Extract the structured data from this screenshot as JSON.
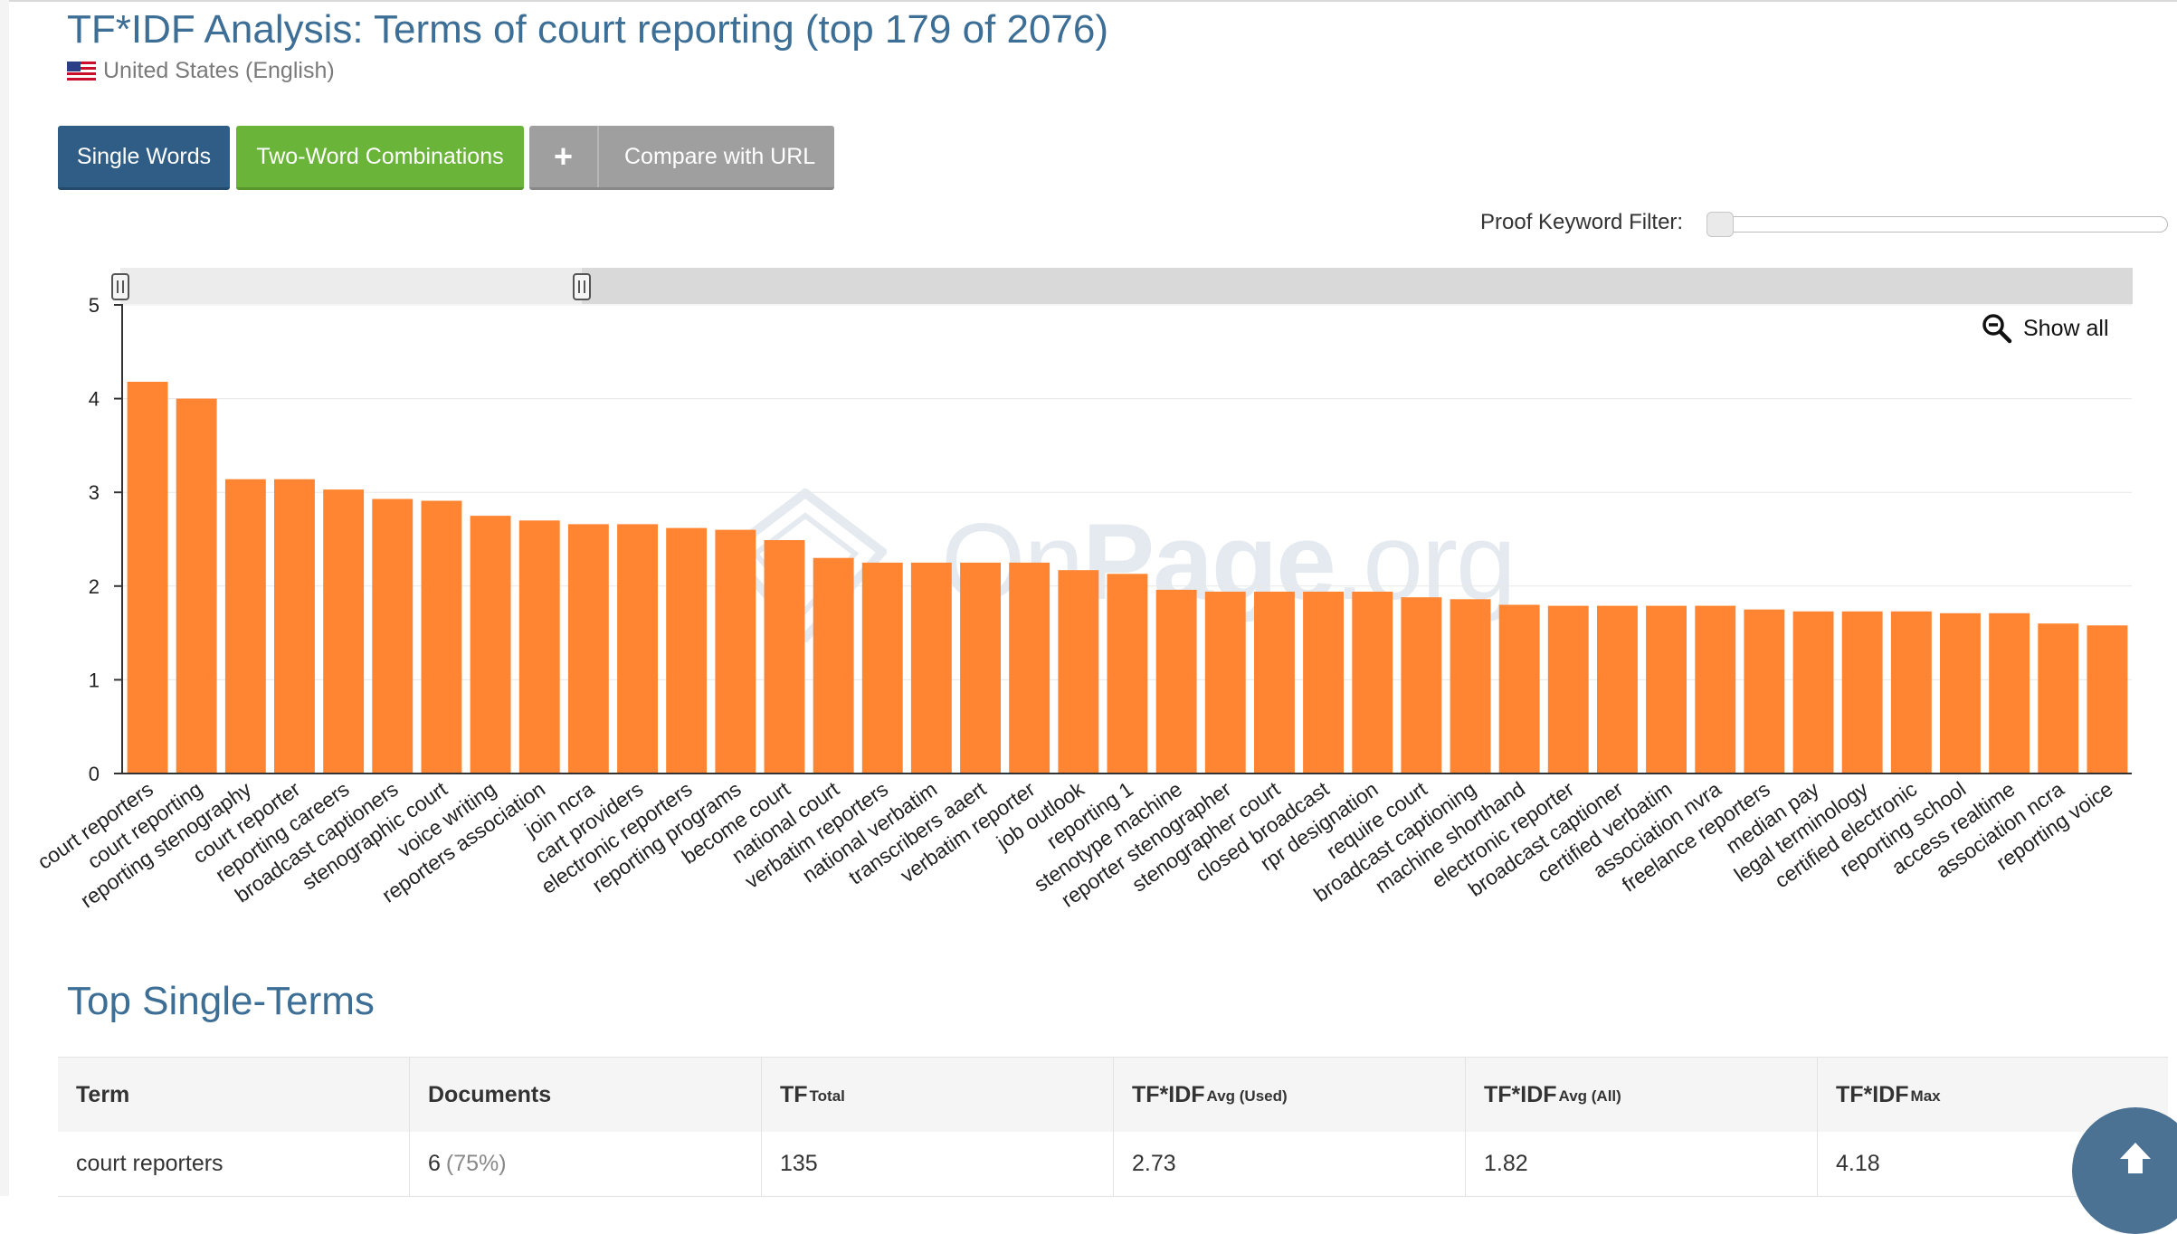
{
  "header": {
    "title": "TF*IDF Analysis: Terms of court reporting (top 179 of 2076)",
    "locale": "United States (English)"
  },
  "tabs": {
    "single_words": "Single Words",
    "two_word": "Two-Word Combinations",
    "compare_plus": "+",
    "compare_url": "Compare with URL"
  },
  "filter": {
    "label": "Proof Keyword Filter:",
    "value": 0
  },
  "chart": {
    "show_all": "Show all",
    "watermark_left": "On",
    "watermark_bold": "Page",
    "watermark_right": ".org"
  },
  "chart_data": {
    "type": "bar",
    "categories": [
      "court reporters",
      "court reporting",
      "reporting stenography",
      "court reporter",
      "reporting careers",
      "broadcast captioners",
      "stenographic court",
      "voice writing",
      "reporters association",
      "join ncra",
      "cart providers",
      "electronic reporters",
      "reporting programs",
      "become court",
      "national court",
      "verbatim reporters",
      "national verbatim",
      "transcribers aaert",
      "verbatim reporter",
      "job outlook",
      "reporting 1",
      "stenotype machine",
      "reporter stenographer",
      "stenographer court",
      "closed broadcast",
      "rpr designation",
      "require court",
      "broadcast captioning",
      "machine shorthand",
      "electronic reporter",
      "broadcast captioner",
      "certified verbatim",
      "association nvra",
      "freelance reporters",
      "median pay",
      "legal terminology",
      "certified electronic",
      "reporting school",
      "access realtime",
      "association ncra",
      "reporting voice"
    ],
    "values": [
      4.18,
      4.0,
      3.14,
      3.14,
      3.03,
      2.93,
      2.91,
      2.75,
      2.7,
      2.66,
      2.66,
      2.62,
      2.6,
      2.49,
      2.3,
      2.25,
      2.25,
      2.25,
      2.25,
      2.17,
      2.13,
      1.96,
      1.94,
      1.94,
      1.94,
      1.94,
      1.88,
      1.86,
      1.8,
      1.79,
      1.79,
      1.79,
      1.79,
      1.75,
      1.73,
      1.73,
      1.73,
      1.71,
      1.71,
      1.6,
      1.58
    ],
    "yticks": [
      "0",
      "1",
      "2",
      "3",
      "4",
      "5"
    ],
    "ylim": [
      0,
      5
    ],
    "bar_color": "#ff8533",
    "grid": true
  },
  "section_title": "Top Single-Terms",
  "table": {
    "headers": [
      {
        "main": "Term",
        "sub": ""
      },
      {
        "main": "Documents",
        "sub": ""
      },
      {
        "main": "TF",
        "sub": "Total"
      },
      {
        "main": "TF*IDF",
        "sub": "Avg (Used)"
      },
      {
        "main": "TF*IDF",
        "sub": "Avg (All)"
      },
      {
        "main": "TF*IDF",
        "sub": "Max"
      }
    ],
    "rows": [
      {
        "term": "court reporters",
        "documents": "6",
        "documents_pct": "(75%)",
        "tf_total": "135",
        "avg_used": "2.73",
        "avg_all": "1.82",
        "max": "4.18"
      }
    ]
  },
  "colors": {
    "primary": "#2f5d86",
    "green": "#6ab43a",
    "gray": "#9f9f9f",
    "title": "#3d6f96",
    "scroll_button": "#4b7193"
  }
}
